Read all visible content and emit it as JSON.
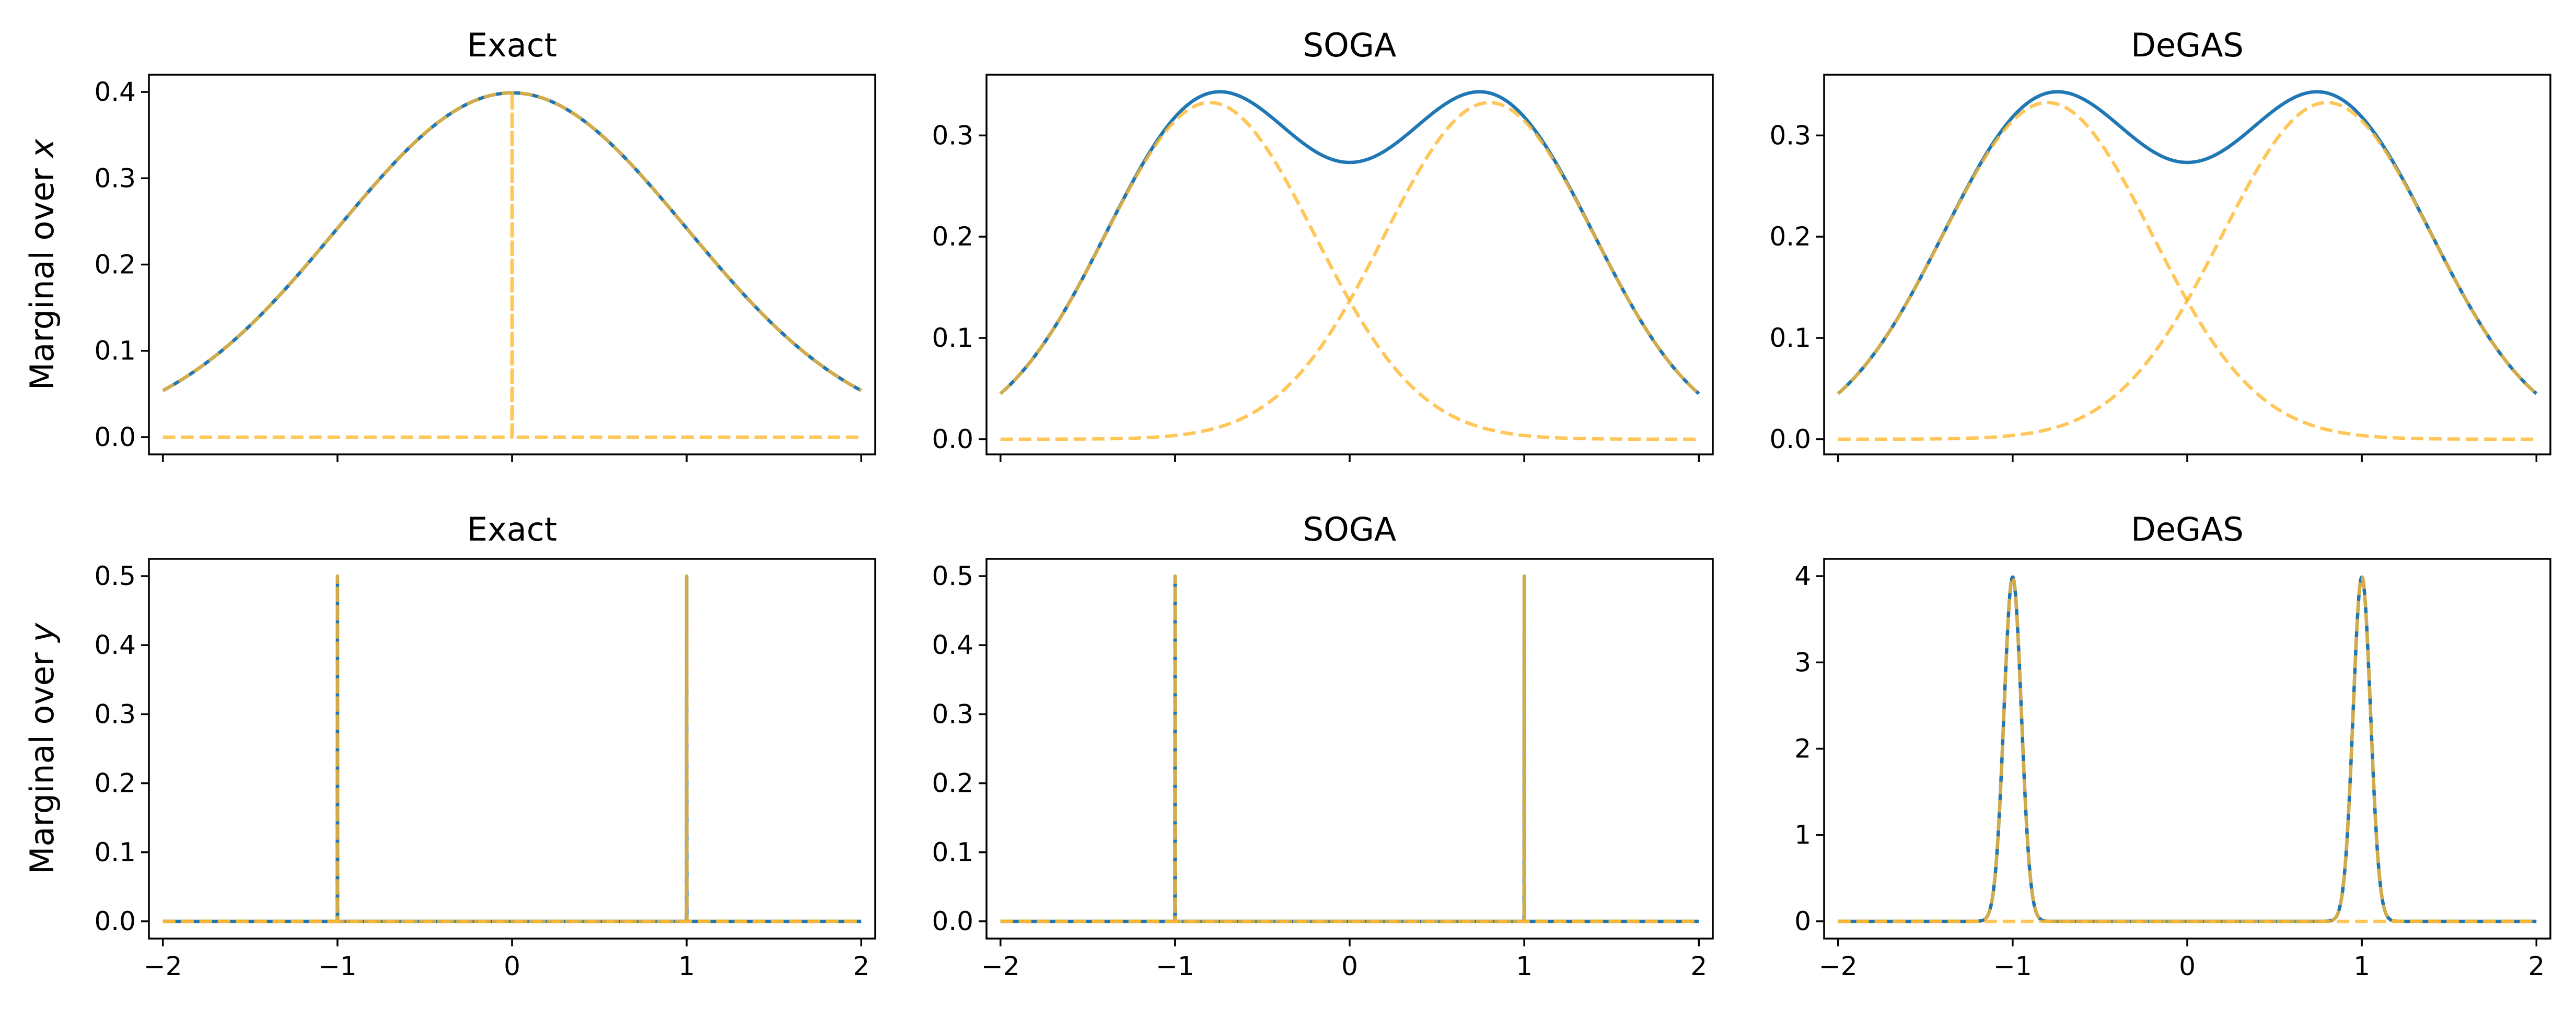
{
  "chart_data": [
    {
      "type": "line",
      "title": "Exact",
      "ylabel": "Marginal over x",
      "xlim": [
        -2.08,
        2.08
      ],
      "ylim": [
        -0.02,
        0.42
      ],
      "xticks": [
        -2,
        -1,
        0,
        1,
        2
      ],
      "xtick_labels_visible": false,
      "yticks": [
        0.0,
        0.1,
        0.2,
        0.3,
        0.4
      ],
      "ytick_labels": [
        "0.0",
        "0.1",
        "0.2",
        "0.3",
        "0.4"
      ],
      "series": [
        {
          "kind": "density",
          "color": "#1f77b4",
          "style": "solid",
          "mixture": [
            {
              "w": 1.0,
              "mu": 0.0,
              "sigma": 1.0
            }
          ]
        },
        {
          "kind": "component",
          "color": "#ffb830",
          "style": "dashed",
          "mixture": [
            {
              "w": 1.0,
              "mu": 0.0,
              "sigma": 1.0
            }
          ]
        },
        {
          "kind": "component",
          "color": "#ffb830",
          "style": "dashed",
          "points": [
            [
              -2,
              0
            ],
            [
              -0.001,
              0
            ],
            [
              0,
              0.399
            ],
            [
              0.001,
              0
            ],
            [
              2,
              0
            ]
          ]
        }
      ]
    },
    {
      "type": "line",
      "title": "SOGA",
      "ylabel": "",
      "xlim": [
        -2.08,
        2.08
      ],
      "ylim": [
        -0.015,
        0.36
      ],
      "xticks": [
        -2,
        -1,
        0,
        1,
        2
      ],
      "xtick_labels_visible": false,
      "yticks": [
        0.0,
        0.1,
        0.2,
        0.3
      ],
      "ytick_labels": [
        "0.0",
        "0.1",
        "0.2",
        "0.3"
      ],
      "series": [
        {
          "kind": "density",
          "color": "#1f77b4",
          "style": "solid",
          "mixture": [
            {
              "w": 0.5,
              "mu": -0.8,
              "sigma": 0.6
            },
            {
              "w": 0.5,
              "mu": 0.8,
              "sigma": 0.6
            }
          ]
        },
        {
          "kind": "component",
          "color": "#ffb830",
          "style": "dashed",
          "mixture": [
            {
              "w": 0.5,
              "mu": -0.8,
              "sigma": 0.6
            }
          ]
        },
        {
          "kind": "component",
          "color": "#ffb830",
          "style": "dashed",
          "mixture": [
            {
              "w": 0.5,
              "mu": 0.8,
              "sigma": 0.6
            }
          ]
        }
      ]
    },
    {
      "type": "line",
      "title": "DeGAS",
      "ylabel": "",
      "xlim": [
        -2.08,
        2.08
      ],
      "ylim": [
        -0.015,
        0.36
      ],
      "xticks": [
        -2,
        -1,
        0,
        1,
        2
      ],
      "xtick_labels_visible": false,
      "yticks": [
        0.0,
        0.1,
        0.2,
        0.3
      ],
      "ytick_labels": [
        "0.0",
        "0.1",
        "0.2",
        "0.3"
      ],
      "series": [
        {
          "kind": "density",
          "color": "#1f77b4",
          "style": "solid",
          "mixture": [
            {
              "w": 0.5,
              "mu": -0.8,
              "sigma": 0.6
            },
            {
              "w": 0.5,
              "mu": 0.8,
              "sigma": 0.6
            }
          ]
        },
        {
          "kind": "component",
          "color": "#ffb830",
          "style": "dashed",
          "mixture": [
            {
              "w": 0.5,
              "mu": -0.8,
              "sigma": 0.6
            }
          ]
        },
        {
          "kind": "component",
          "color": "#ffb830",
          "style": "dashed",
          "mixture": [
            {
              "w": 0.5,
              "mu": 0.8,
              "sigma": 0.6
            }
          ]
        }
      ]
    },
    {
      "type": "line",
      "title": "Exact",
      "ylabel": "Marginal over y",
      "xlim": [
        -2.08,
        2.08
      ],
      "ylim": [
        -0.025,
        0.525
      ],
      "xticks": [
        -2,
        -1,
        0,
        1,
        2
      ],
      "xtick_labels_visible": true,
      "xtick_labels": [
        "−2",
        "−1",
        "0",
        "1",
        "2"
      ],
      "yticks": [
        0.0,
        0.1,
        0.2,
        0.3,
        0.4,
        0.5
      ],
      "ytick_labels": [
        "0.0",
        "0.1",
        "0.2",
        "0.3",
        "0.4",
        "0.5"
      ],
      "series": [
        {
          "kind": "density",
          "color": "#1f77b4",
          "style": "solid",
          "points": [
            [
              -2,
              0
            ],
            [
              -1.001,
              0
            ],
            [
              -1,
              0.5
            ],
            [
              -0.999,
              0
            ],
            [
              0.999,
              0
            ],
            [
              1,
              0.5
            ],
            [
              1.001,
              0
            ],
            [
              2,
              0
            ]
          ]
        },
        {
          "kind": "component",
          "color": "#ffb830",
          "style": "dashed",
          "points": [
            [
              -2,
              0
            ],
            [
              -1.001,
              0
            ],
            [
              -1,
              0.5
            ],
            [
              -0.999,
              0
            ],
            [
              2,
              0
            ]
          ]
        },
        {
          "kind": "component",
          "color": "#ffb830",
          "style": "dashed",
          "points": [
            [
              -2,
              0
            ],
            [
              0.999,
              0
            ],
            [
              1,
              0.5
            ],
            [
              1.001,
              0
            ],
            [
              2,
              0
            ]
          ]
        }
      ]
    },
    {
      "type": "line",
      "title": "SOGA",
      "ylabel": "",
      "xlim": [
        -2.08,
        2.08
      ],
      "ylim": [
        -0.025,
        0.525
      ],
      "xticks": [
        -2,
        -1,
        0,
        1,
        2
      ],
      "xtick_labels_visible": true,
      "xtick_labels": [
        "−2",
        "−1",
        "0",
        "1",
        "2"
      ],
      "yticks": [
        0.0,
        0.1,
        0.2,
        0.3,
        0.4,
        0.5
      ],
      "ytick_labels": [
        "0.0",
        "0.1",
        "0.2",
        "0.3",
        "0.4",
        "0.5"
      ],
      "series": [
        {
          "kind": "density",
          "color": "#1f77b4",
          "style": "solid",
          "points": [
            [
              -2,
              0
            ],
            [
              -1.001,
              0
            ],
            [
              -1,
              0.5
            ],
            [
              -0.999,
              0
            ],
            [
              0.999,
              0
            ],
            [
              1,
              0.5
            ],
            [
              1.001,
              0
            ],
            [
              2,
              0
            ]
          ]
        },
        {
          "kind": "component",
          "color": "#ffb830",
          "style": "dashed",
          "points": [
            [
              -2,
              0
            ],
            [
              -1.001,
              0
            ],
            [
              -1,
              0.5
            ],
            [
              -0.999,
              0
            ],
            [
              2,
              0
            ]
          ]
        },
        {
          "kind": "component",
          "color": "#ffb830",
          "style": "dashed",
          "points": [
            [
              -2,
              0
            ],
            [
              0.999,
              0
            ],
            [
              1,
              0.5
            ],
            [
              1.001,
              0
            ],
            [
              2,
              0
            ]
          ]
        }
      ]
    },
    {
      "type": "line",
      "title": "DeGAS",
      "ylabel": "",
      "xlim": [
        -2.08,
        2.08
      ],
      "ylim": [
        -0.2,
        4.2
      ],
      "xticks": [
        -2,
        -1,
        0,
        1,
        2
      ],
      "xtick_labels_visible": true,
      "xtick_labels": [
        "−2",
        "−1",
        "0",
        "1",
        "2"
      ],
      "yticks": [
        0,
        1,
        2,
        3,
        4
      ],
      "ytick_labels": [
        "0",
        "1",
        "2",
        "3",
        "4"
      ],
      "series": [
        {
          "kind": "density",
          "color": "#1f77b4",
          "style": "solid",
          "mixture": [
            {
              "w": 0.5,
              "mu": -1.0,
              "sigma": 0.05
            },
            {
              "w": 0.5,
              "mu": 1.0,
              "sigma": 0.05
            }
          ]
        },
        {
          "kind": "component",
          "color": "#ffb830",
          "style": "dashed",
          "mixture": [
            {
              "w": 0.5,
              "mu": -1.0,
              "sigma": 0.05
            }
          ]
        },
        {
          "kind": "component",
          "color": "#ffb830",
          "style": "dashed",
          "mixture": [
            {
              "w": 0.5,
              "mu": 1.0,
              "sigma": 0.05
            }
          ]
        }
      ]
    }
  ]
}
